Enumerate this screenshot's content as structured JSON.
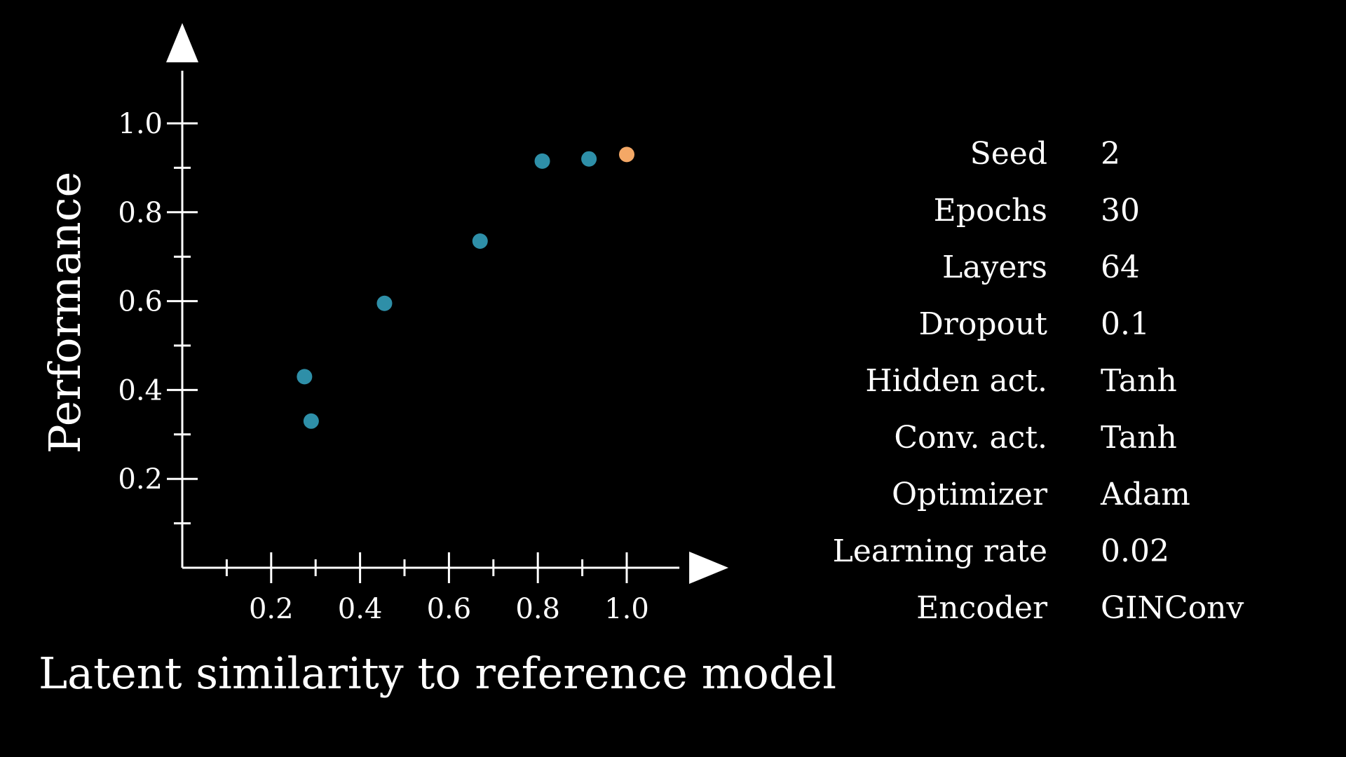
{
  "chart_data": {
    "type": "scatter",
    "xlabel": "Latent similarity to reference model",
    "ylabel": "Performance",
    "xlim": [
      0,
      1.15
    ],
    "ylim": [
      0,
      1.15
    ],
    "x_ticks": [
      0.2,
      0.4,
      0.6,
      0.8,
      1.0
    ],
    "x_tick_labels": [
      "0.2",
      "0.4",
      "0.6",
      "0.8",
      "1.0"
    ],
    "y_ticks": [
      0.2,
      0.4,
      0.6,
      0.8,
      1.0
    ],
    "y_tick_labels": [
      "0.2",
      "0.4",
      "0.6",
      "0.8",
      "1.0"
    ],
    "minor_ticks": [
      0.1,
      0.3,
      0.5,
      0.7,
      0.9
    ],
    "grid": false,
    "series": [
      {
        "color": "#2e8fa8",
        "points": [
          {
            "x": 0.275,
            "y": 0.43
          },
          {
            "x": 0.29,
            "y": 0.33
          },
          {
            "x": 0.455,
            "y": 0.595
          },
          {
            "x": 0.67,
            "y": 0.735
          },
          {
            "x": 0.81,
            "y": 0.915
          },
          {
            "x": 0.915,
            "y": 0.92
          }
        ]
      },
      {
        "color": "#f4a866",
        "points": [
          {
            "x": 1.0,
            "y": 0.93
          }
        ]
      }
    ]
  },
  "parameters": [
    {
      "label": "Seed",
      "value": "2"
    },
    {
      "label": "Epochs",
      "value": "30"
    },
    {
      "label": "Layers",
      "value": "64"
    },
    {
      "label": "Dropout",
      "value": "0.1"
    },
    {
      "label": "Hidden act.",
      "value": "Tanh"
    },
    {
      "label": "Conv. act.",
      "value": "Tanh"
    },
    {
      "label": "Optimizer",
      "value": "Adam"
    },
    {
      "label": "Learning rate",
      "value": "0.02"
    },
    {
      "label": "Encoder",
      "value": "GINConv"
    }
  ]
}
